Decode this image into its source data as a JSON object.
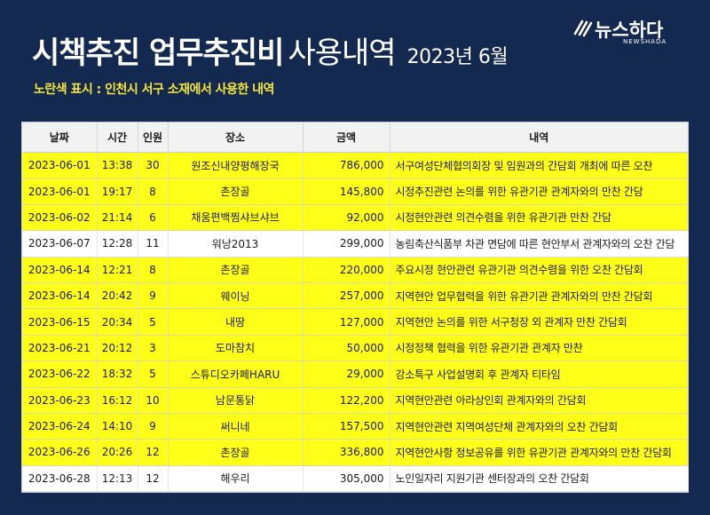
{
  "header": {
    "title_bold": "시책추진 업무추진비",
    "title_light": "사용내역",
    "title_date": "2023년 6월",
    "note": "노란색 표시 : 인천시 서구 소재에서 사용한 내역"
  },
  "logo": {
    "word": "뉴스하다",
    "sub": "NEWSHADA",
    "icon": "newshada-logo-icon",
    "color": "#ffffff"
  },
  "colors": {
    "background": "#13294f",
    "highlight": "#ffff1a",
    "note": "#f5e63a"
  },
  "table": {
    "columns": [
      "날짜",
      "시간",
      "인원",
      "장소",
      "금액",
      "내역"
    ],
    "rows": [
      {
        "date": "2023-06-01",
        "time": "13:38",
        "people": "30",
        "place": "원조신내양평해장국",
        "amount": "786,000",
        "detail": "서구여성단체협의회장 및 임원과의 간담회 개최에 따른 오찬",
        "highlight": true
      },
      {
        "date": "2023-06-01",
        "time": "19:17",
        "people": "8",
        "place": "촌장골",
        "amount": "145,800",
        "detail": "시정추진관련 논의를 위한 유관기관 관계자와의 만찬 간담",
        "highlight": true
      },
      {
        "date": "2023-06-02",
        "time": "21:14",
        "people": "6",
        "place": "채움편백찜샤브샤브",
        "amount": "92,000",
        "detail": "시정현안관련 의견수렴을 위한 유관기관 만찬 간담",
        "highlight": true
      },
      {
        "date": "2023-06-07",
        "time": "12:28",
        "people": "11",
        "place": "워낭2013",
        "amount": "299,000",
        "detail": "농림축산식품부 차관 면담에 따른 현안부서 관계자와의 오찬 간담",
        "highlight": false
      },
      {
        "date": "2023-06-14",
        "time": "12:21",
        "people": "8",
        "place": "촌장골",
        "amount": "220,000",
        "detail": "주요시정 현안관련 유관기관 의견수렴을 위한 오찬 간담회",
        "highlight": true
      },
      {
        "date": "2023-06-14",
        "time": "20:42",
        "people": "9",
        "place": "웨이닝",
        "amount": "257,000",
        "detail": "지역현안 업무협력을 위한 유관기관 관계자와의 만찬 간담회",
        "highlight": true
      },
      {
        "date": "2023-06-15",
        "time": "20:34",
        "people": "5",
        "place": "내땅",
        "amount": "127,000",
        "detail": "지역현안 논의를 위한 서구청장 외 관계자 만찬 간담회",
        "highlight": true
      },
      {
        "date": "2023-06-21",
        "time": "20:12",
        "people": "3",
        "place": "도마참치",
        "amount": "50,000",
        "detail": "시정정책 협력을 위한 유관기관 관계자 만찬",
        "highlight": true
      },
      {
        "date": "2023-06-22",
        "time": "18:32",
        "people": "5",
        "place": "스튜디오카페HARU",
        "amount": "29,000",
        "detail": "강소특구 사업설명회 후 관계자 티타임",
        "highlight": true
      },
      {
        "date": "2023-06-23",
        "time": "16:12",
        "people": "10",
        "place": "남문통닭",
        "amount": "122,200",
        "detail": "지역현안관련 아라상인회 관계자와의 간담회",
        "highlight": true
      },
      {
        "date": "2023-06-24",
        "time": "14:10",
        "people": "9",
        "place": "써니네",
        "amount": "157,500",
        "detail": "지역현안관련 지역여성단체 관계자와의 오찬 간담회",
        "highlight": true
      },
      {
        "date": "2023-06-26",
        "time": "20:26",
        "people": "12",
        "place": "촌장골",
        "amount": "336,800",
        "detail": "지역현안사항 정보공유를 위한 유관기관 관계자와의 만찬 간담회",
        "highlight": true
      },
      {
        "date": "2023-06-28",
        "time": "12:13",
        "people": "12",
        "place": "해우리",
        "amount": "305,000",
        "detail": "노인일자리 지원기관 센터장과의 오찬 간담회",
        "highlight": false
      }
    ]
  }
}
